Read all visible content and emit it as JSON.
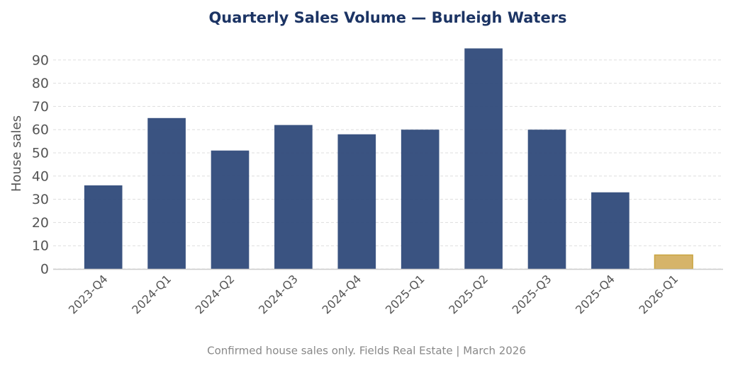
{
  "chart_data": {
    "type": "bar",
    "title": "Quarterly Sales Volume — Burleigh Waters",
    "ylabel": "House sales",
    "categories": [
      "2023-Q4",
      "2024-Q1",
      "2024-Q2",
      "2024-Q3",
      "2024-Q4",
      "2025-Q1",
      "2025-Q2",
      "2025-Q3",
      "2025-Q4",
      "2026-Q1"
    ],
    "values": [
      36,
      65,
      51,
      62,
      58,
      60,
      95,
      60,
      33,
      6
    ],
    "colors": [
      "#2f4a7a",
      "#2f4a7a",
      "#2f4a7a",
      "#2f4a7a",
      "#2f4a7a",
      "#2f4a7a",
      "#2f4a7a",
      "#2f4a7a",
      "#2f4a7a",
      "#d4b062"
    ],
    "ylim": [
      0,
      100
    ],
    "yticks": [
      0,
      10,
      20,
      30,
      40,
      50,
      60,
      70,
      80,
      90
    ],
    "grid": true,
    "footnote": "Confirmed house sales only. Fields Real Estate | March 2026"
  }
}
